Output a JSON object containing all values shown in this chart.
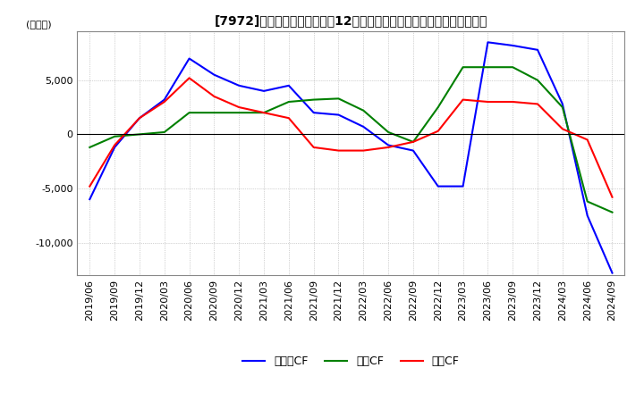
{
  "title": "[7972]　キャッシュフローの12か月移動合計の対前年同期増減額の推移",
  "ylabel": "(百万円)",
  "ylim": [
    -13000,
    9500
  ],
  "yticks": [
    -10000,
    -5000,
    0,
    5000
  ],
  "legend_labels": [
    "営業CF",
    "投資CF",
    "フリーCF"
  ],
  "colors": {
    "営業CF": "#ff0000",
    "投資CF": "#008000",
    "フリーCF": "#0000ff"
  },
  "dates": [
    "2019/06",
    "2019/09",
    "2019/12",
    "2020/03",
    "2020/06",
    "2020/09",
    "2020/12",
    "2021/03",
    "2021/06",
    "2021/09",
    "2021/12",
    "2022/03",
    "2022/06",
    "2022/09",
    "2022/12",
    "2023/03",
    "2023/06",
    "2023/09",
    "2023/12",
    "2024/03",
    "2024/06",
    "2024/09"
  ],
  "営業CF": [
    -4800,
    -1000,
    1500,
    3000,
    5200,
    3500,
    2500,
    2000,
    1500,
    -1200,
    -1500,
    -1500,
    -1200,
    -700,
    300,
    3200,
    3000,
    3000,
    2800,
    500,
    -500,
    -5800
  ],
  "投資CF": [
    -1200,
    -200,
    0,
    200,
    2000,
    2000,
    2000,
    2000,
    3000,
    3200,
    3300,
    2200,
    200,
    -700,
    2500,
    6200,
    6200,
    6200,
    5000,
    2500,
    -6200,
    -7200
  ],
  "フリーCF": [
    -6000,
    -1200,
    1500,
    3200,
    7000,
    5500,
    4500,
    4000,
    4500,
    2000,
    1800,
    700,
    -1000,
    -1500,
    -4800,
    -4800,
    8500,
    8200,
    7800,
    2800,
    -7500,
    -12800
  ],
  "background_color": "#ffffff",
  "grid_color": "#aaaaaa",
  "title_fontsize": 10,
  "axis_fontsize": 8
}
